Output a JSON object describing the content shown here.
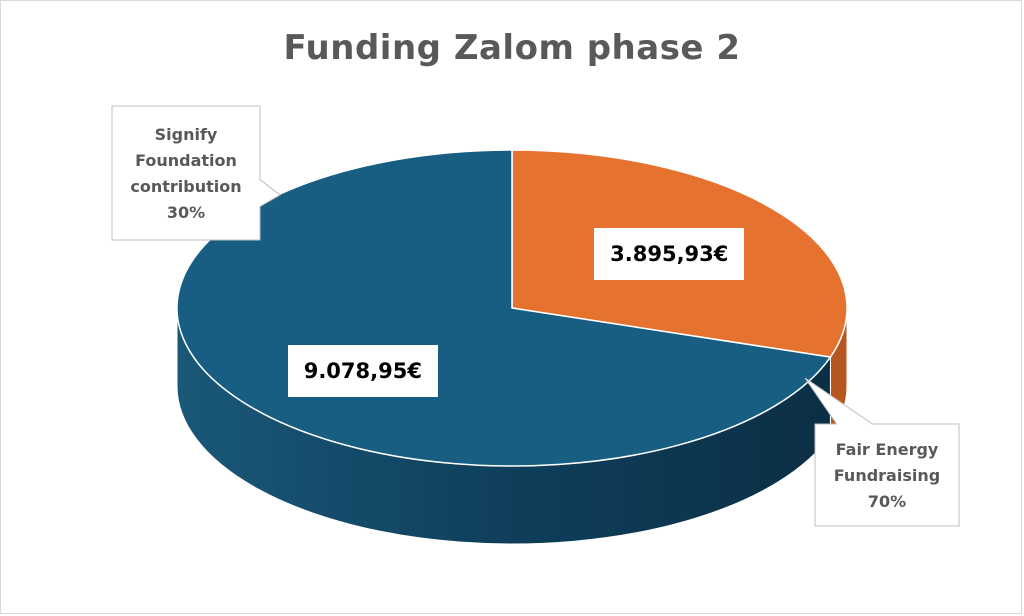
{
  "chart_data": {
    "type": "pie",
    "title": "Funding Zalom phase 2",
    "slices": [
      {
        "category": "Signify Foundation contribution",
        "label_lines": [
          "Signify",
          "Foundation",
          "contribution",
          "30%"
        ],
        "value": 3895.93,
        "value_label": "3.895,93€",
        "percent": 30,
        "color": "#E5722F",
        "side_color": "#B8561F"
      },
      {
        "category": "Fair Energy Fundraising",
        "label_lines": [
          "Fair Energy",
          "Fundraising",
          "70%"
        ],
        "value": 9078.95,
        "value_label": "9.078,95€",
        "percent": 70,
        "color": "#175E82",
        "side_color": "#0F3D58"
      }
    ],
    "legend": "none",
    "style": "3d"
  }
}
